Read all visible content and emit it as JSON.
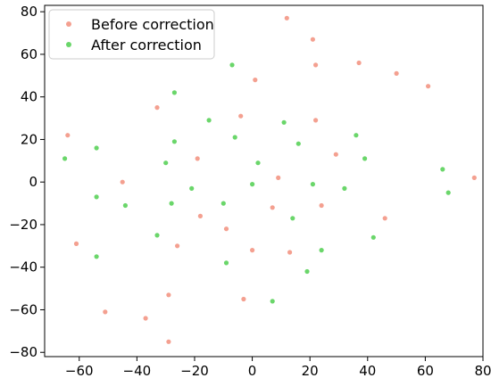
{
  "chart_data": {
    "type": "scatter",
    "title": "",
    "xlabel": "",
    "ylabel": "",
    "xlim": [
      -72,
      80
    ],
    "ylim": [
      -82,
      83
    ],
    "xticks": [
      -60,
      -40,
      -20,
      0,
      20,
      40,
      60,
      80
    ],
    "yticks": [
      -80,
      -60,
      -40,
      -20,
      0,
      20,
      40,
      60,
      80
    ],
    "grid": false,
    "legend_position": "top-left",
    "series": [
      {
        "name": "Before correction",
        "color": "#f4a090",
        "points": [
          [
            12,
            77
          ],
          [
            21,
            67
          ],
          [
            22,
            55
          ],
          [
            37,
            56
          ],
          [
            50,
            51
          ],
          [
            61,
            45
          ],
          [
            1,
            48
          ],
          [
            -33,
            35
          ],
          [
            -4,
            31
          ],
          [
            22,
            29
          ],
          [
            -64,
            22
          ],
          [
            -19,
            11
          ],
          [
            29,
            13
          ],
          [
            9,
            2
          ],
          [
            77,
            2
          ],
          [
            -45,
            0
          ],
          [
            7,
            -12
          ],
          [
            24,
            -11
          ],
          [
            46,
            -17
          ],
          [
            -18,
            -16
          ],
          [
            -9,
            -22
          ],
          [
            -61,
            -29
          ],
          [
            -26,
            -30
          ],
          [
            0,
            -32
          ],
          [
            13,
            -33
          ],
          [
            -3,
            -55
          ],
          [
            -29,
            -53
          ],
          [
            -51,
            -61
          ],
          [
            -37,
            -64
          ],
          [
            -29,
            -75
          ]
        ]
      },
      {
        "name": "After correction",
        "color": "#6ad66a",
        "points": [
          [
            -7,
            55
          ],
          [
            -27,
            42
          ],
          [
            -15,
            29
          ],
          [
            11,
            28
          ],
          [
            -6,
            21
          ],
          [
            36,
            22
          ],
          [
            16,
            18
          ],
          [
            -27,
            19
          ],
          [
            -54,
            16
          ],
          [
            -65,
            11
          ],
          [
            -30,
            9
          ],
          [
            2,
            9
          ],
          [
            39,
            11
          ],
          [
            66,
            6
          ],
          [
            -21,
            -3
          ],
          [
            0,
            -1
          ],
          [
            21,
            -1
          ],
          [
            32,
            -3
          ],
          [
            68,
            -5
          ],
          [
            -54,
            -7
          ],
          [
            -44,
            -11
          ],
          [
            -28,
            -10
          ],
          [
            -10,
            -10
          ],
          [
            14,
            -17
          ],
          [
            -33,
            -25
          ],
          [
            42,
            -26
          ],
          [
            24,
            -32
          ],
          [
            -54,
            -35
          ],
          [
            -9,
            -38
          ],
          [
            19,
            -42
          ],
          [
            7,
            -56
          ]
        ]
      }
    ]
  }
}
